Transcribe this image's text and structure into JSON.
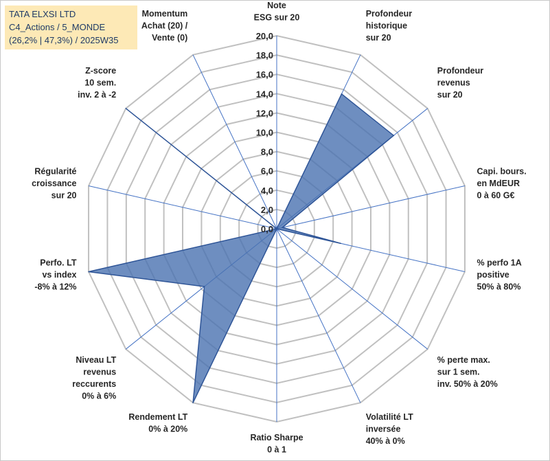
{
  "title_box": {
    "line1": "TATA ELXSI LTD",
    "line2": "C4_Actions / 5_MONDE",
    "line3": "(26,2% | 47,3%) / 2025W35"
  },
  "chart_data": {
    "type": "radar",
    "title": "TATA ELXSI LTD",
    "rmin": 0,
    "rmax": 20,
    "ticks": [
      "0,0",
      "2,0",
      "4,0",
      "6,0",
      "8,0",
      "10,0",
      "12,0",
      "14,0",
      "16,0",
      "18,0",
      "20,0"
    ],
    "tick_values": [
      0,
      2,
      4,
      6,
      8,
      10,
      12,
      14,
      16,
      18,
      20
    ],
    "axes": [
      {
        "label": [
          "Note",
          "ESG sur 20"
        ],
        "value": 0
      },
      {
        "label": [
          "Profondeur",
          "historique",
          "sur 20"
        ],
        "value": 15.5
      },
      {
        "label": [
          "Profondeur",
          "revenus",
          "sur 20"
        ],
        "value": 15.5
      },
      {
        "label": [
          "Capi. bours.",
          "en MdEUR",
          "0 à 60 G€"
        ],
        "value": 0.6
      },
      {
        "label": [
          "% perfo 1A",
          "positive",
          "50% à 80%"
        ],
        "value": 6.8
      },
      {
        "label": [
          "% perte max.",
          "sur 1 sem.",
          "inv. 50% à 20%"
        ],
        "value": 0
      },
      {
        "label": [
          "Volatilité LT",
          "inversée",
          "40% à 0%"
        ],
        "value": 0
      },
      {
        "label": [
          "Ratio Sharpe",
          "0 à 1"
        ],
        "value": 0
      },
      {
        "label": [
          "Rendement LT",
          "0% à 20%"
        ],
        "value": 20
      },
      {
        "label": [
          "Niveau LT",
          "revenus",
          "reccurents",
          "0% à 6%"
        ],
        "value": 9.6
      },
      {
        "label": [
          "Perfo. LT",
          "vs index",
          "-8% à 12%"
        ],
        "value": 20
      },
      {
        "label": [
          "Régularité",
          "croissance",
          "sur 20"
        ],
        "value": 0
      },
      {
        "label": [
          "Z-score",
          "10 sem.",
          "inv. 2 à -2"
        ],
        "value": 20
      },
      {
        "label": [
          "Momentum",
          "Achat (20) /",
          "Vente (0)"
        ],
        "value": 0
      }
    ],
    "series": [
      {
        "values": [
          0,
          15.5,
          15.5,
          0.6,
          6.8,
          0,
          0,
          0,
          20,
          9.6,
          20,
          0,
          20,
          0
        ]
      }
    ],
    "colors": {
      "fill": "#4a72b0",
      "fill_opacity": 0.8,
      "stroke": "#2f5597",
      "grid": "#c0c0c0",
      "spoke": "#4472c4"
    }
  }
}
